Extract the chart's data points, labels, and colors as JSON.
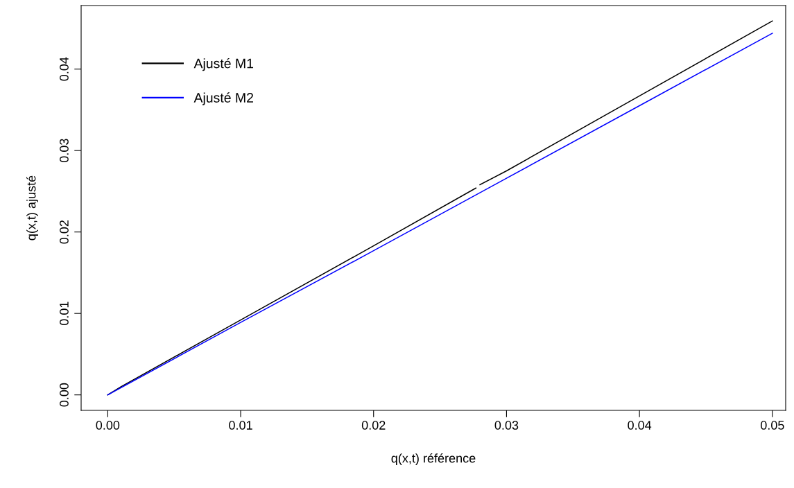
{
  "chart_data": {
    "type": "line",
    "xlabel": "q(x,t) référence",
    "ylabel": "q(x,t) ajusté",
    "xlim": [
      -0.002,
      0.051
    ],
    "ylim": [
      -0.0019,
      0.0478
    ],
    "xticks": [
      {
        "value": 0,
        "label": "0.00"
      },
      {
        "value": 0.01,
        "label": "0.01"
      },
      {
        "value": 0.02,
        "label": "0.02"
      },
      {
        "value": 0.03,
        "label": "0.03"
      },
      {
        "value": 0.04,
        "label": "0.04"
      },
      {
        "value": 0.05,
        "label": "0.05"
      }
    ],
    "yticks": [
      {
        "value": 0,
        "label": "0.00"
      },
      {
        "value": 0.01,
        "label": "0.01"
      },
      {
        "value": 0.02,
        "label": "0.02"
      },
      {
        "value": 0.03,
        "label": "0.03"
      },
      {
        "value": 0.04,
        "label": "0.04"
      }
    ],
    "grid": false,
    "legend": "top left",
    "marker": "none",
    "line_style": "solid",
    "series": [
      {
        "name": "Ajusté M1",
        "color": "#000000",
        "x": [
          0,
          0.001,
          0.01,
          0.02,
          0.0277,
          0.0278,
          0.028,
          0.03,
          0.04,
          0.05
        ],
        "values": [
          0,
          0.001,
          0.0092,
          0.0183,
          0.0254,
          null,
          0.0258,
          0.0275,
          0.0367,
          0.0459
        ]
      },
      {
        "name": "Ajusté M2",
        "color": "#0000ff",
        "x": [
          0,
          0.01,
          0.02,
          0.03,
          0.04,
          0.05
        ],
        "values": [
          0,
          0.0089,
          0.0177,
          0.0266,
          0.0355,
          0.0444
        ]
      }
    ]
  }
}
